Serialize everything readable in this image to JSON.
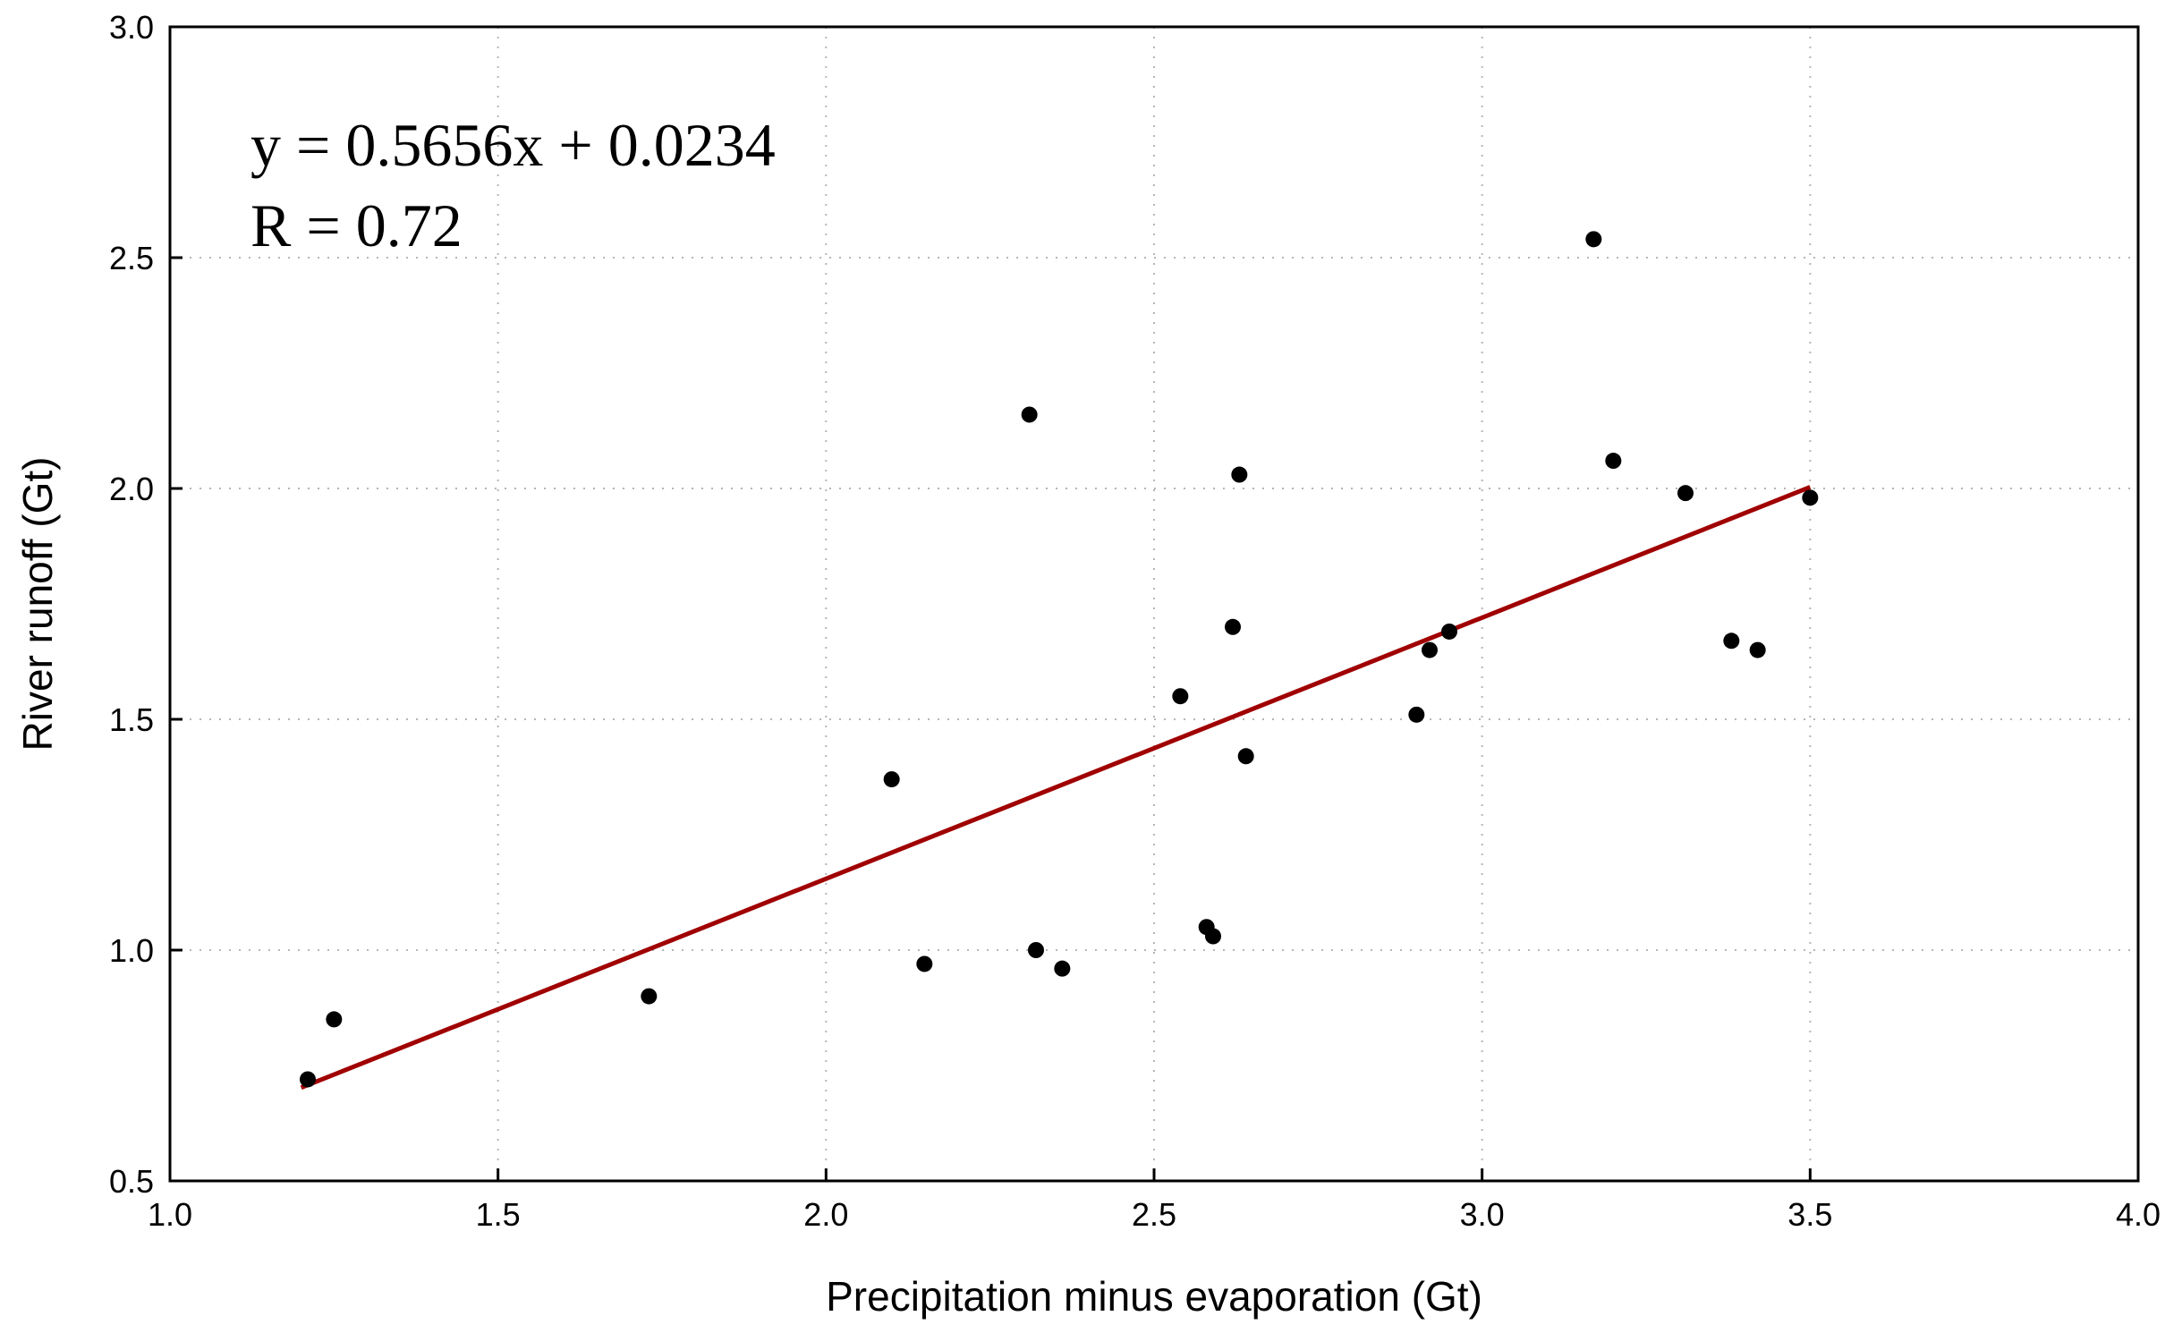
{
  "chart_data": {
    "type": "scatter",
    "xlabel": "Precipitation minus evaporation (Gt)",
    "ylabel": "River runoff (Gt)",
    "xlim": [
      1.0,
      4.0
    ],
    "ylim": [
      0.5,
      3.0
    ],
    "xticks": [
      "1.0",
      "1.5",
      "2.0",
      "2.5",
      "3.0",
      "3.5",
      "4.0"
    ],
    "yticks": [
      "0.5",
      "1.0",
      "1.5",
      "2.0",
      "2.5",
      "3.0"
    ],
    "grid": true,
    "points": [
      {
        "x": 1.21,
        "y": 0.72
      },
      {
        "x": 1.25,
        "y": 0.85
      },
      {
        "x": 1.73,
        "y": 0.9
      },
      {
        "x": 2.1,
        "y": 1.37
      },
      {
        "x": 2.15,
        "y": 0.97
      },
      {
        "x": 2.31,
        "y": 2.16
      },
      {
        "x": 2.32,
        "y": 1.0
      },
      {
        "x": 2.36,
        "y": 0.96
      },
      {
        "x": 2.54,
        "y": 1.55
      },
      {
        "x": 2.58,
        "y": 1.05
      },
      {
        "x": 2.59,
        "y": 1.03
      },
      {
        "x": 2.62,
        "y": 1.7
      },
      {
        "x": 2.63,
        "y": 2.03
      },
      {
        "x": 2.64,
        "y": 1.42
      },
      {
        "x": 2.9,
        "y": 1.51
      },
      {
        "x": 2.92,
        "y": 1.65
      },
      {
        "x": 2.95,
        "y": 1.69
      },
      {
        "x": 3.17,
        "y": 2.54
      },
      {
        "x": 3.2,
        "y": 2.06
      },
      {
        "x": 3.31,
        "y": 1.99
      },
      {
        "x": 3.38,
        "y": 1.67
      },
      {
        "x": 3.42,
        "y": 1.65
      },
      {
        "x": 3.5,
        "y": 1.98
      }
    ],
    "fit_line": {
      "x_start": 1.2,
      "x_end": 3.5,
      "slope": 0.5656,
      "intercept": 0.0234,
      "color": "#a00000"
    },
    "annotations": [
      "y = 0.5656x + 0.0234",
      "R = 0.72"
    ]
  }
}
